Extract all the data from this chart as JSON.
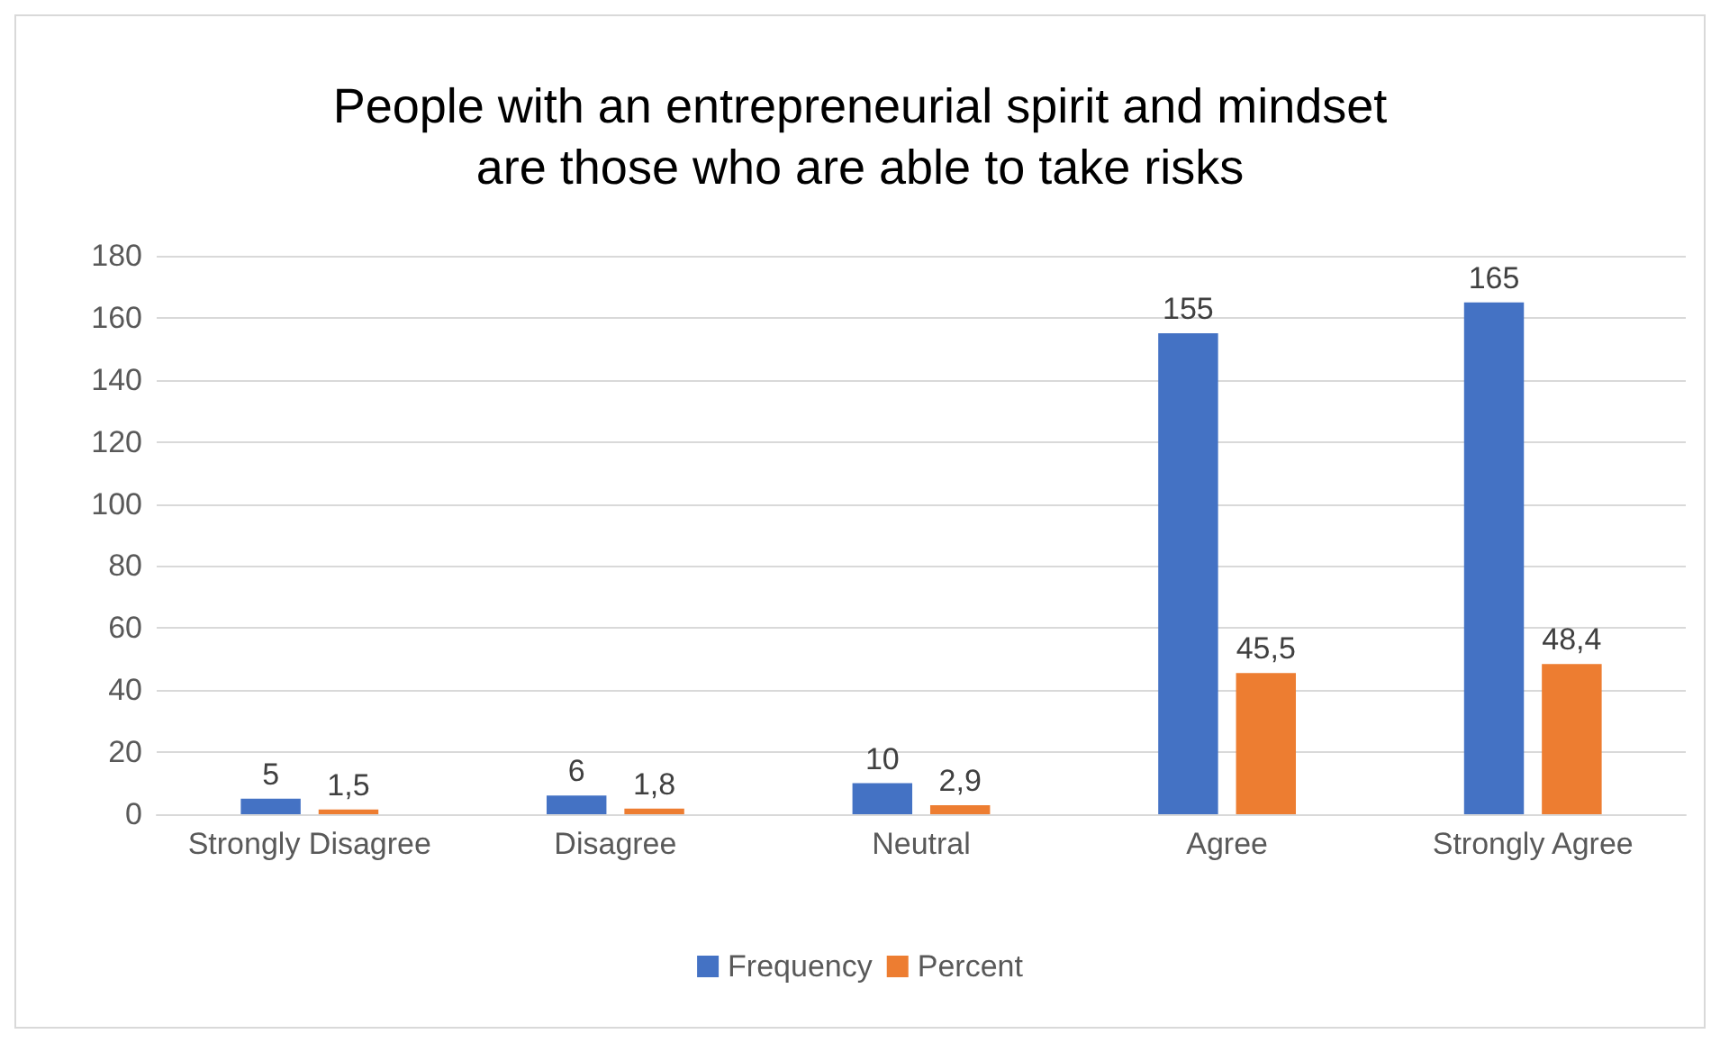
{
  "chart_data": {
    "type": "bar",
    "title": "People with an entrepreneurial spirit and mindset\nare those who are able to take risks",
    "categories": [
      "Strongly Disagree",
      "Disagree",
      "Neutral",
      "Agree",
      "Strongly Agree"
    ],
    "series": [
      {
        "name": "Frequency",
        "color": "#4472c4",
        "values": [
          5,
          6,
          10,
          155,
          165
        ],
        "value_labels": [
          "5",
          "6",
          "10",
          "155",
          "165"
        ]
      },
      {
        "name": "Percent",
        "color": "#ed7d31",
        "values": [
          1.5,
          1.8,
          2.9,
          45.5,
          48.4
        ],
        "value_labels": [
          "1,5",
          "1,8",
          "2,9",
          "45,5",
          "48,4"
        ]
      }
    ],
    "ylim": [
      0,
      180
    ],
    "yticks": [
      0,
      20,
      40,
      60,
      80,
      100,
      120,
      140,
      160,
      180
    ],
    "grid": "y",
    "legend": "bottom"
  }
}
